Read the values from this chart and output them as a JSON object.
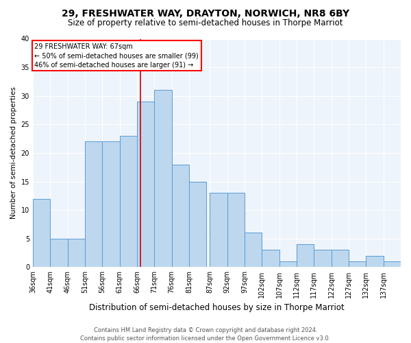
{
  "title": "29, FRESHWATER WAY, DRAYTON, NORWICH, NR8 6BY",
  "subtitle": "Size of property relative to semi-detached houses in Thorpe Marriot",
  "xlabel": "Distribution of semi-detached houses by size in Thorpe Marriot",
  "ylabel": "Number of semi-detached properties",
  "footer1": "Contains HM Land Registry data © Crown copyright and database right 2024.",
  "footer2": "Contains public sector information licensed under the Open Government Licence v3.0.",
  "annotation_line1": "29 FRESHWATER WAY: 67sqm",
  "annotation_line2": "← 50% of semi-detached houses are smaller (99)",
  "annotation_line3": "46% of semi-detached houses are larger (91) →",
  "bar_color": "#BDD7EE",
  "bar_edge_color": "#5B9BD5",
  "ref_line_color": "#CC0000",
  "ref_line_x": 67,
  "background_color": "#EEF4FB",
  "categories": [
    "36sqm",
    "41sqm",
    "46sqm",
    "51sqm",
    "56sqm",
    "61sqm",
    "66sqm",
    "71sqm",
    "76sqm",
    "81sqm",
    "87sqm",
    "92sqm",
    "97sqm",
    "102sqm",
    "107sqm",
    "112sqm",
    "117sqm",
    "122sqm",
    "127sqm",
    "132sqm",
    "137sqm"
  ],
  "bin_edges": [
    36,
    41,
    46,
    51,
    56,
    61,
    66,
    71,
    76,
    81,
    87,
    92,
    97,
    102,
    107,
    112,
    117,
    122,
    127,
    132,
    137,
    142
  ],
  "values": [
    12,
    5,
    5,
    22,
    22,
    23,
    29,
    31,
    18,
    15,
    13,
    13,
    6,
    3,
    1,
    4,
    3,
    3,
    1,
    2,
    1
  ],
  "ylim": [
    0,
    40
  ],
  "yticks": [
    0,
    5,
    10,
    15,
    20,
    25,
    30,
    35,
    40
  ],
  "title_fontsize": 10,
  "subtitle_fontsize": 8.5,
  "xlabel_fontsize": 8.5,
  "ylabel_fontsize": 7.5,
  "tick_fontsize": 7,
  "footer_fontsize": 6,
  "annotation_fontsize": 7
}
